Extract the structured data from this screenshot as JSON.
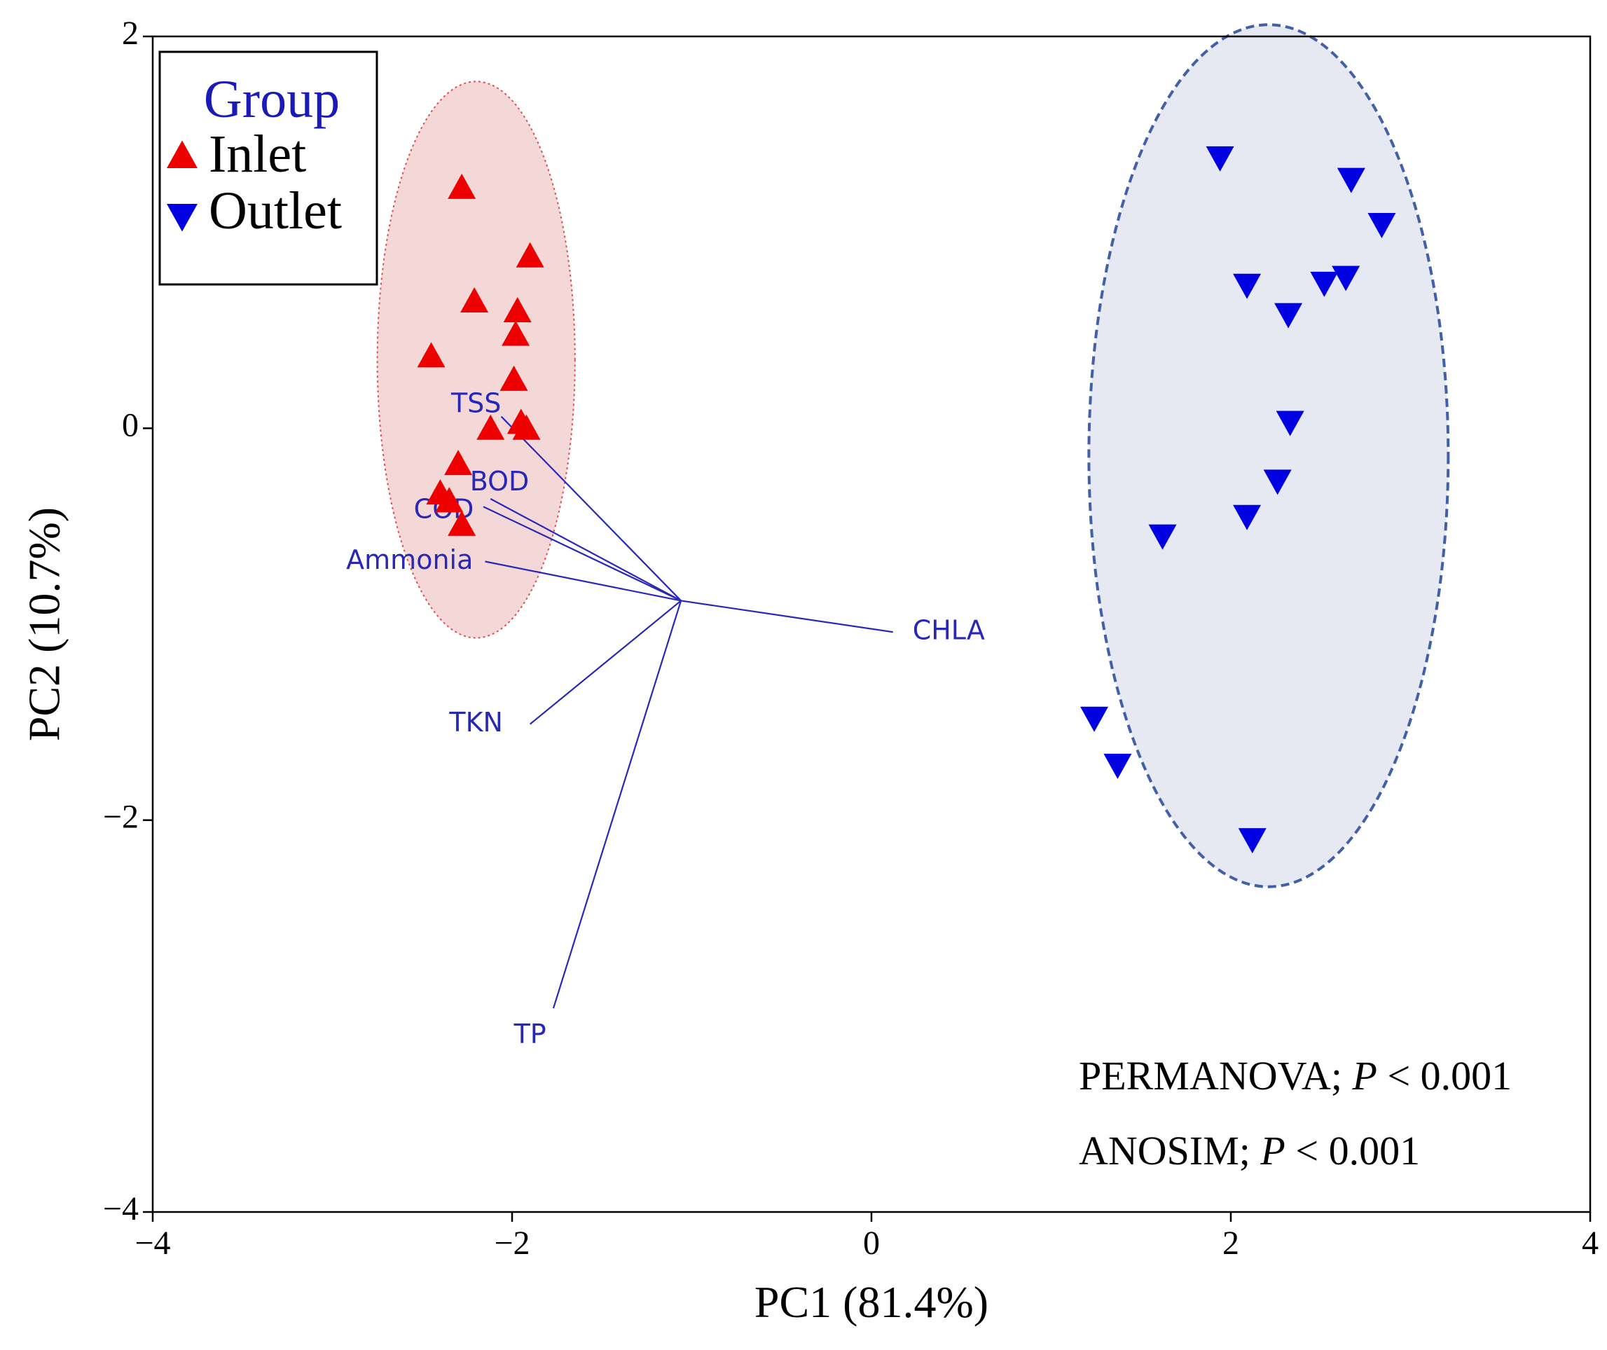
{
  "chart_data": {
    "type": "scatter",
    "subtype": "pca-biplot",
    "xlabel": "PC1 (81.4%)",
    "ylabel": "PC2 (10.7%)",
    "xlim": [
      -4,
      4
    ],
    "ylim": [
      -4,
      2
    ],
    "xticks": [
      -4,
      -2,
      0,
      2,
      4
    ],
    "yticks": [
      -4,
      -2,
      0,
      2
    ],
    "xtick_labels": [
      "−4",
      "−2",
      "0",
      "2",
      "4"
    ],
    "ytick_labels": [
      "−4",
      "−2",
      "0",
      "2"
    ],
    "legend": {
      "title": "Group",
      "placement": "top-left",
      "entries": [
        "Inlet",
        "Outlet"
      ]
    },
    "series": [
      {
        "name": "Inlet",
        "marker": "triangle-up",
        "color": "#ee0000",
        "points": [
          {
            "x": -2.28,
            "y": 1.22
          },
          {
            "x": -1.9,
            "y": 0.87
          },
          {
            "x": -2.21,
            "y": 0.64
          },
          {
            "x": -1.97,
            "y": 0.59
          },
          {
            "x": -1.98,
            "y": 0.47
          },
          {
            "x": -2.45,
            "y": 0.36
          },
          {
            "x": -1.99,
            "y": 0.24
          },
          {
            "x": -2.12,
            "y": -0.01
          },
          {
            "x": -1.95,
            "y": 0.02
          },
          {
            "x": -1.92,
            "y": -0.01
          },
          {
            "x": -2.3,
            "y": -0.19
          },
          {
            "x": -2.4,
            "y": -0.34
          },
          {
            "x": -2.35,
            "y": -0.38
          },
          {
            "x": -2.28,
            "y": -0.5
          }
        ],
        "ellipse": {
          "cx": -2.2,
          "cy": 0.35,
          "rx": 0.55,
          "ry": 1.42,
          "fill": "#f4d8d8",
          "stroke": "#e05050",
          "dash": "dotted"
        }
      },
      {
        "name": "Outlet",
        "marker": "triangle-down",
        "color": "#0000e0",
        "points": [
          {
            "x": 1.94,
            "y": 1.39
          },
          {
            "x": 2.67,
            "y": 1.28
          },
          {
            "x": 2.84,
            "y": 1.05
          },
          {
            "x": 2.09,
            "y": 0.74
          },
          {
            "x": 2.52,
            "y": 0.75
          },
          {
            "x": 2.64,
            "y": 0.78
          },
          {
            "x": 2.32,
            "y": 0.59
          },
          {
            "x": 2.33,
            "y": 0.04
          },
          {
            "x": 2.26,
            "y": -0.26
          },
          {
            "x": 2.09,
            "y": -0.44
          },
          {
            "x": 1.62,
            "y": -0.54
          },
          {
            "x": 1.24,
            "y": -1.47
          },
          {
            "x": 1.37,
            "y": -1.71
          },
          {
            "x": 2.12,
            "y": -2.09
          }
        ],
        "ellipse": {
          "cx": 2.21,
          "cy": -0.14,
          "rx": 1.0,
          "ry": 2.2,
          "fill": "#e6e8f2",
          "stroke": "#4060a8",
          "dash": "dashed"
        }
      }
    ],
    "loadings": {
      "origin": {
        "x": -1.06,
        "y": -0.88
      },
      "color": "#2828b8",
      "vectors": [
        {
          "label": "TSS",
          "x": -2.06,
          "y": 0.06,
          "label_x": -2.2,
          "label_y": 0.12
        },
        {
          "label": "BOD",
          "x": -2.12,
          "y": -0.36,
          "label_x": -2.07,
          "label_y": -0.28
        },
        {
          "label": "COD",
          "x": -2.16,
          "y": -0.4,
          "label_x": -2.38,
          "label_y": -0.42
        },
        {
          "label": "Ammonia",
          "x": -2.15,
          "y": -0.68,
          "label_x": -2.57,
          "label_y": -0.68
        },
        {
          "label": "CHLA",
          "x": 0.12,
          "y": -1.04,
          "label_x": 0.43,
          "label_y": -1.04
        },
        {
          "label": "TKN",
          "x": -1.9,
          "y": -1.51,
          "label_x": -2.2,
          "label_y": -1.51
        },
        {
          "label": "TP",
          "x": -1.77,
          "y": -2.96,
          "label_x": -1.9,
          "label_y": -3.1
        }
      ]
    },
    "annotations": [
      {
        "text_prefix": "PERMANOVA; ",
        "p": "P",
        "text_suffix": " < 0.001"
      },
      {
        "text_prefix": "ANOSIM; ",
        "p": "P",
        "text_suffix": " < 0.001"
      }
    ]
  }
}
